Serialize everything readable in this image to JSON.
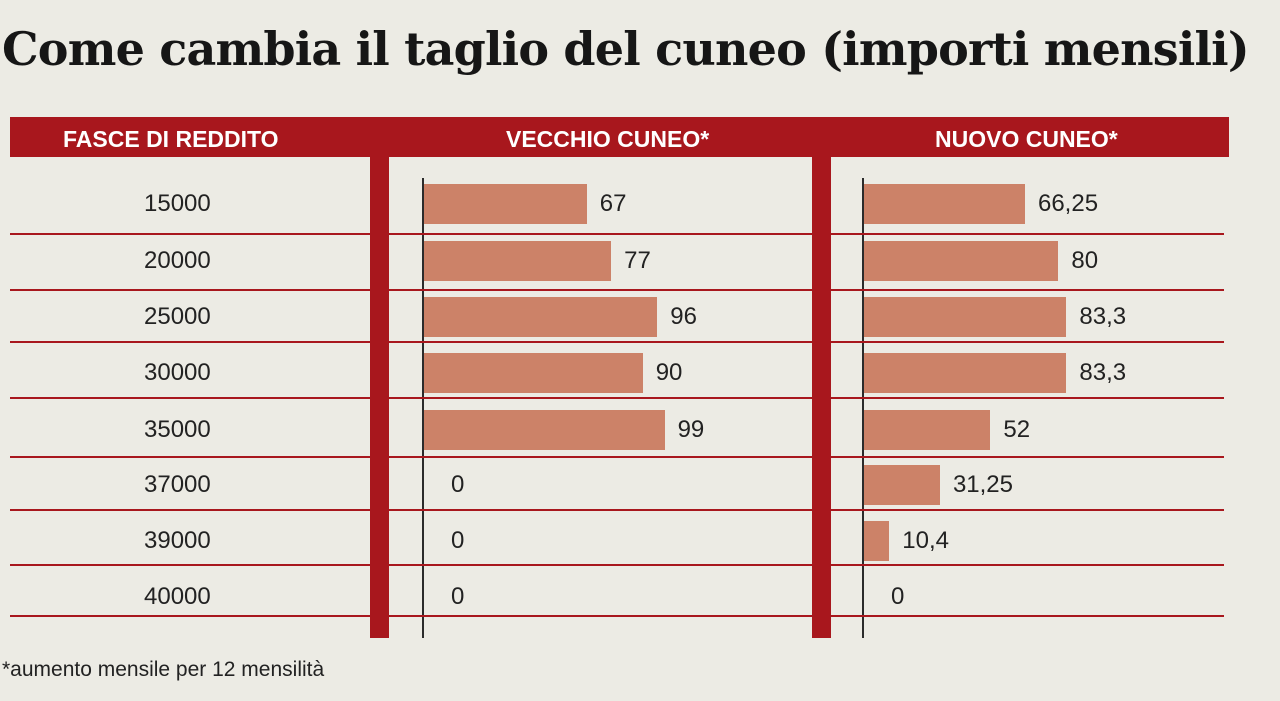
{
  "chart_data": {
    "type": "bar",
    "title": "Come cambia il taglio del cuneo (importi mensili)",
    "category_header": "FASCE DI REDDITO",
    "categories": [
      "15000",
      "20000",
      "25000",
      "30000",
      "35000",
      "37000",
      "39000",
      "40000"
    ],
    "series": [
      {
        "name": "VECCHIO CUNEO*",
        "values": [
          67,
          77,
          96,
          90,
          99,
          0,
          0,
          0
        ],
        "labels": [
          "67",
          "77",
          "96",
          "90",
          "99",
          "0",
          "0",
          "0"
        ]
      },
      {
        "name": "NUOVO CUNEO*",
        "values": [
          66.25,
          80,
          83.3,
          83.3,
          52,
          31.25,
          10.4,
          0
        ],
        "labels": [
          "66,25",
          "80",
          "83,3",
          "83,3",
          "52",
          "31,25",
          "10,4",
          "0"
        ]
      }
    ],
    "orientation": "horizontal",
    "footnote": "*aumento mensile per 12 mensilità",
    "colors": {
      "accent": "#a8171d",
      "bar": "#cc8268",
      "background": "#ecebe4"
    }
  }
}
